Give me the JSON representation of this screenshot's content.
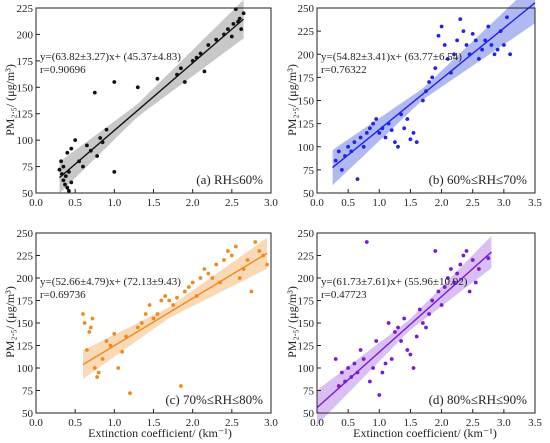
{
  "figure": {
    "xlabel": "Extinction coefficient/  (km⁻¹)",
    "ylabel": "PM₂.₅/  (μg/m³)"
  },
  "chart_data": [
    {
      "type": "scatter",
      "panel_label": "(a) RH≤60%",
      "equation": "y=(63.82±3.27)x+  (45.37±4.83)",
      "r_text": "r=0.90696",
      "color": "#111111",
      "band_color": "#9a9a9a",
      "xlim": [
        0.0,
        3.0
      ],
      "ylim": [
        50,
        225
      ],
      "xticks": [
        0.0,
        0.5,
        1.0,
        1.5,
        2.0,
        2.5,
        3.0
      ],
      "yticks": [
        50,
        75,
        100,
        125,
        150,
        175,
        200,
        225
      ],
      "fit": {
        "slope": 63.82,
        "intercept": 45.37,
        "x_range": [
          0.3,
          2.65
        ]
      },
      "points": [
        [
          0.3,
          72
        ],
        [
          0.32,
          80
        ],
        [
          0.33,
          68
        ],
        [
          0.35,
          75
        ],
        [
          0.35,
          62
        ],
        [
          0.37,
          58
        ],
        [
          0.38,
          66
        ],
        [
          0.4,
          88
        ],
        [
          0.4,
          55
        ],
        [
          0.42,
          70
        ],
        [
          0.42,
          52
        ],
        [
          0.45,
          92
        ],
        [
          0.45,
          60
        ],
        [
          0.5,
          100
        ],
        [
          0.55,
          80
        ],
        [
          0.6,
          75
        ],
        [
          0.65,
          95
        ],
        [
          0.7,
          90
        ],
        [
          0.75,
          145
        ],
        [
          0.78,
          85
        ],
        [
          0.82,
          102
        ],
        [
          0.85,
          98
        ],
        [
          0.9,
          110
        ],
        [
          1.0,
          155
        ],
        [
          1.0,
          70
        ],
        [
          1.3,
          150
        ],
        [
          1.55,
          158
        ],
        [
          1.8,
          162
        ],
        [
          1.85,
          168
        ],
        [
          1.9,
          155
        ],
        [
          2.0,
          175
        ],
        [
          2.05,
          178
        ],
        [
          2.1,
          182
        ],
        [
          2.15,
          165
        ],
        [
          2.2,
          190
        ],
        [
          2.3,
          195
        ],
        [
          2.4,
          200
        ],
        [
          2.45,
          205
        ],
        [
          2.5,
          198
        ],
        [
          2.52,
          210
        ],
        [
          2.55,
          224
        ],
        [
          2.58,
          212
        ],
        [
          2.6,
          215
        ],
        [
          2.62,
          205
        ],
        [
          2.65,
          220
        ]
      ]
    },
    {
      "type": "scatter",
      "panel_label": "(b) 60%≤RH≤70%",
      "equation": "y=(54.82±3.41)x+  (63.77±6.54)",
      "r_text": "r=0.76322",
      "color": "#2222ee",
      "band_color": "#6f80e6",
      "xlim": [
        0.0,
        3.5
      ],
      "ylim": [
        50,
        250
      ],
      "xticks": [
        0.0,
        0.5,
        1.0,
        1.5,
        2.0,
        2.5,
        3.0,
        3.5
      ],
      "yticks": [
        50,
        75,
        100,
        125,
        150,
        175,
        200,
        225,
        250
      ],
      "fit": {
        "slope": 54.82,
        "intercept": 63.77,
        "x_range": [
          0.25,
          3.5
        ]
      },
      "points": [
        [
          0.3,
          85
        ],
        [
          0.35,
          95
        ],
        [
          0.4,
          75
        ],
        [
          0.45,
          90
        ],
        [
          0.5,
          100
        ],
        [
          0.55,
          95
        ],
        [
          0.6,
          105
        ],
        [
          0.65,
          65
        ],
        [
          0.7,
          110
        ],
        [
          0.75,
          100
        ],
        [
          0.8,
          115
        ],
        [
          0.85,
          120
        ],
        [
          0.9,
          125
        ],
        [
          0.95,
          130
        ],
        [
          1.0,
          115
        ],
        [
          1.05,
          120
        ],
        [
          1.1,
          110
        ],
        [
          1.15,
          125
        ],
        [
          1.2,
          118
        ],
        [
          1.25,
          105
        ],
        [
          1.3,
          100
        ],
        [
          1.35,
          135
        ],
        [
          1.4,
          120
        ],
        [
          1.45,
          130
        ],
        [
          1.5,
          108
        ],
        [
          1.55,
          115
        ],
        [
          1.6,
          105
        ],
        [
          1.7,
          150
        ],
        [
          1.75,
          160
        ],
        [
          1.8,
          170
        ],
        [
          1.85,
          175
        ],
        [
          1.9,
          185
        ],
        [
          1.95,
          220
        ],
        [
          2.0,
          230
        ],
        [
          2.05,
          210
        ],
        [
          2.1,
          195
        ],
        [
          2.15,
          180
        ],
        [
          2.2,
          200
        ],
        [
          2.25,
          215
        ],
        [
          2.3,
          238
        ],
        [
          2.35,
          225
        ],
        [
          2.4,
          210
        ],
        [
          2.45,
          200
        ],
        [
          2.5,
          222
        ],
        [
          2.55,
          215
        ],
        [
          2.6,
          195
        ],
        [
          2.65,
          205
        ],
        [
          2.7,
          215
        ],
        [
          2.75,
          230
        ],
        [
          2.8,
          210
        ],
        [
          2.85,
          200
        ],
        [
          2.9,
          205
        ],
        [
          2.95,
          225
        ],
        [
          3.0,
          210
        ],
        [
          3.05,
          240
        ],
        [
          3.1,
          200
        ]
      ]
    },
    {
      "type": "scatter",
      "panel_label": "(c) 70%≤RH≤80%",
      "equation": "y=(52.66±4.79)x+  (72.13±9.43)",
      "r_text": "r=0.69736",
      "color": "#f08a1a",
      "band_color": "#f6b97a",
      "xlim": [
        0.0,
        3.0
      ],
      "ylim": [
        50,
        250
      ],
      "xticks": [
        0.0,
        0.5,
        1.0,
        1.5,
        2.0,
        2.5,
        3.0
      ],
      "yticks": [
        50,
        75,
        100,
        125,
        150,
        175,
        200,
        225,
        250
      ],
      "fit": {
        "slope": 52.66,
        "intercept": 72.13,
        "x_range": [
          0.6,
          2.95
        ]
      },
      "points": [
        [
          0.6,
          160
        ],
        [
          0.62,
          150
        ],
        [
          0.65,
          120
        ],
        [
          0.68,
          140
        ],
        [
          0.7,
          145
        ],
        [
          0.72,
          155
        ],
        [
          0.75,
          100
        ],
        [
          0.78,
          90
        ],
        [
          0.8,
          95
        ],
        [
          0.85,
          110
        ],
        [
          0.9,
          130
        ],
        [
          0.95,
          125
        ],
        [
          1.0,
          138
        ],
        [
          1.05,
          100
        ],
        [
          1.1,
          118
        ],
        [
          1.15,
          135
        ],
        [
          1.2,
          72
        ],
        [
          1.3,
          145
        ],
        [
          1.35,
          150
        ],
        [
          1.4,
          160
        ],
        [
          1.45,
          170
        ],
        [
          1.5,
          155
        ],
        [
          1.55,
          160
        ],
        [
          1.6,
          175
        ],
        [
          1.65,
          180
        ],
        [
          1.7,
          175
        ],
        [
          1.75,
          170
        ],
        [
          1.8,
          178
        ],
        [
          1.85,
          80
        ],
        [
          1.9,
          185
        ],
        [
          1.95,
          190
        ],
        [
          2.0,
          195
        ],
        [
          2.05,
          180
        ],
        [
          2.1,
          200
        ],
        [
          2.15,
          210
        ],
        [
          2.2,
          205
        ],
        [
          2.25,
          200
        ],
        [
          2.3,
          215
        ],
        [
          2.35,
          195
        ],
        [
          2.4,
          220
        ],
        [
          2.45,
          230
        ],
        [
          2.5,
          225
        ],
        [
          2.55,
          235
        ],
        [
          2.6,
          200
        ],
        [
          2.65,
          210
        ],
        [
          2.7,
          220
        ],
        [
          2.75,
          185
        ],
        [
          2.8,
          240
        ],
        [
          2.85,
          230
        ],
        [
          2.9,
          225
        ],
        [
          2.95,
          215
        ]
      ]
    },
    {
      "type": "scatter",
      "panel_label": "(d) 80%≤RH≤90%",
      "equation": "y=(61.73±7.61)x+  (55.96±10.92)",
      "r_text": "r=0.47723",
      "color": "#7a1ad6",
      "band_color": "#b98ae8",
      "xlim": [
        0.0,
        3.5
      ],
      "ylim": [
        50,
        250
      ],
      "xticks": [
        0.0,
        0.5,
        1.0,
        1.5,
        2.0,
        2.5,
        3.0,
        3.5
      ],
      "yticks": [
        50,
        75,
        100,
        125,
        150,
        175,
        200,
        225,
        250
      ],
      "fit": {
        "slope": 61.73,
        "intercept": 55.96,
        "x_range": [
          0.0,
          2.8
        ]
      },
      "points": [
        [
          0.3,
          110
        ],
        [
          0.35,
          80
        ],
        [
          0.4,
          95
        ],
        [
          0.45,
          85
        ],
        [
          0.5,
          100
        ],
        [
          0.55,
          90
        ],
        [
          0.6,
          105
        ],
        [
          0.65,
          95
        ],
        [
          0.7,
          120
        ],
        [
          0.75,
          110
        ],
        [
          0.8,
          240
        ],
        [
          0.85,
          85
        ],
        [
          0.9,
          100
        ],
        [
          0.95,
          130
        ],
        [
          1.0,
          70
        ],
        [
          1.05,
          95
        ],
        [
          1.1,
          105
        ],
        [
          1.15,
          150
        ],
        [
          1.2,
          110
        ],
        [
          1.25,
          140
        ],
        [
          1.3,
          145
        ],
        [
          1.35,
          130
        ],
        [
          1.4,
          155
        ],
        [
          1.45,
          120
        ],
        [
          1.5,
          115
        ],
        [
          1.55,
          100
        ],
        [
          1.6,
          135
        ],
        [
          1.65,
          165
        ],
        [
          1.7,
          150
        ],
        [
          1.75,
          145
        ],
        [
          1.8,
          160
        ],
        [
          1.85,
          175
        ],
        [
          1.9,
          230
        ],
        [
          1.95,
          185
        ],
        [
          2.0,
          170
        ],
        [
          2.05,
          190
        ],
        [
          2.1,
          200
        ],
        [
          2.15,
          210
        ],
        [
          2.2,
          195
        ],
        [
          2.25,
          205
        ],
        [
          2.3,
          215
        ],
        [
          2.35,
          225
        ],
        [
          2.4,
          230
        ],
        [
          2.45,
          185
        ],
        [
          2.5,
          220
        ],
        [
          2.55,
          195
        ],
        [
          2.6,
          210
        ],
        [
          2.75,
          222
        ]
      ]
    }
  ]
}
